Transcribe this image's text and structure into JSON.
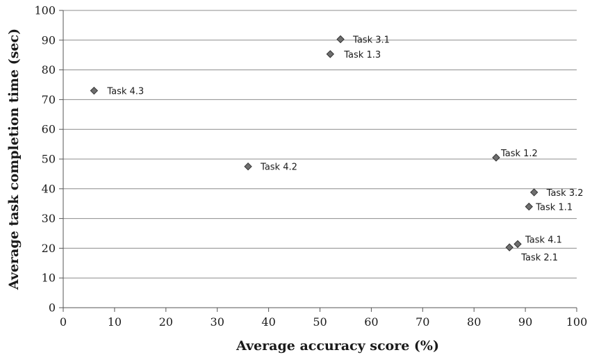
{
  "chart_data": {
    "type": "scatter",
    "xlabel": "Average accuracy score (%)",
    "ylabel": "Average task completion time (sec)",
    "xlim": [
      0,
      100
    ],
    "ylim": [
      0,
      100
    ],
    "xticks": [
      0,
      10,
      20,
      30,
      40,
      50,
      60,
      70,
      80,
      90,
      100
    ],
    "yticks": [
      0,
      10,
      20,
      30,
      40,
      50,
      60,
      70,
      80,
      90,
      100
    ],
    "grid": "horizontal",
    "marker_color": "#6e6e6e",
    "points": [
      {
        "label": "Task 3.1",
        "x": 54.0,
        "y": 90.3
      },
      {
        "label": "Task 1.3",
        "x": 52.0,
        "y": 85.3
      },
      {
        "label": "Task 4.3",
        "x": 6.0,
        "y": 73.0
      },
      {
        "label": "Task 4.2",
        "x": 36.0,
        "y": 47.5
      },
      {
        "label": "Task 1.2",
        "x": 84.3,
        "y": 50.5
      },
      {
        "label": "Task 3.2",
        "x": 91.7,
        "y": 38.8
      },
      {
        "label": "Task 1.1",
        "x": 90.7,
        "y": 34.0
      },
      {
        "label": "Task 4.1",
        "x": 88.5,
        "y": 21.4
      },
      {
        "label": "Task 2.1",
        "x": 86.9,
        "y": 20.3
      }
    ]
  }
}
